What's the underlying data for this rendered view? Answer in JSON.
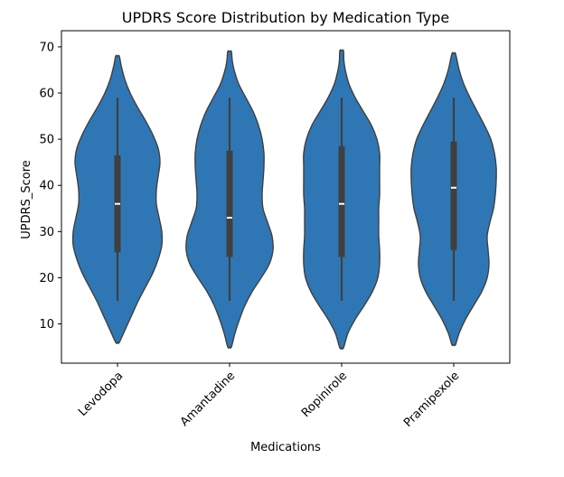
{
  "chart_data": {
    "type": "violin",
    "title": "UPDRS Score Distribution by Medication Type",
    "xlabel": "Medications",
    "ylabel": "UPDRS_Score",
    "categories": [
      "Levodopa",
      "Amantadine",
      "Ropinirole",
      "Pramipexole"
    ],
    "ylim": [
      1.5,
      73.5
    ],
    "yticks": [
      10,
      20,
      30,
      40,
      50,
      60,
      70
    ],
    "xtick_rotation_deg": 45,
    "grid": false,
    "legend": "none",
    "color": "#2f77b4",
    "violins": [
      {
        "category": "Levodopa",
        "kde_min": 6.0,
        "kde_max": 68.0,
        "whisker_low": 15,
        "q1": 25.5,
        "median": 36.0,
        "q3": 46.5,
        "whisker_high": 59,
        "density": [
          {
            "y": 6.0,
            "w": 2
          },
          {
            "y": 9,
            "w": 9
          },
          {
            "y": 12,
            "w": 16
          },
          {
            "y": 15,
            "w": 23
          },
          {
            "y": 18,
            "w": 31
          },
          {
            "y": 21,
            "w": 39
          },
          {
            "y": 24,
            "w": 45
          },
          {
            "y": 27,
            "w": 49
          },
          {
            "y": 30,
            "w": 49
          },
          {
            "y": 33,
            "w": 46
          },
          {
            "y": 36,
            "w": 43
          },
          {
            "y": 39,
            "w": 43
          },
          {
            "y": 42,
            "w": 45
          },
          {
            "y": 45,
            "w": 47
          },
          {
            "y": 48,
            "w": 45
          },
          {
            "y": 51,
            "w": 39
          },
          {
            "y": 54,
            "w": 31
          },
          {
            "y": 57,
            "w": 22
          },
          {
            "y": 60,
            "w": 14
          },
          {
            "y": 63,
            "w": 8
          },
          {
            "y": 66,
            "w": 4
          },
          {
            "y": 68.0,
            "w": 2
          }
        ]
      },
      {
        "category": "Amantadine",
        "kde_min": 5.0,
        "kde_max": 69.0,
        "whisker_low": 15,
        "q1": 24.5,
        "median": 33.0,
        "q3": 47.5,
        "whisker_high": 59,
        "density": [
          {
            "y": 5.0,
            "w": 2
          },
          {
            "y": 8,
            "w": 6
          },
          {
            "y": 11,
            "w": 11
          },
          {
            "y": 14,
            "w": 17
          },
          {
            "y": 17,
            "w": 25
          },
          {
            "y": 20,
            "w": 35
          },
          {
            "y": 23,
            "w": 44
          },
          {
            "y": 26,
            "w": 48
          },
          {
            "y": 29,
            "w": 47
          },
          {
            "y": 32,
            "w": 42
          },
          {
            "y": 35,
            "w": 37
          },
          {
            "y": 38,
            "w": 36
          },
          {
            "y": 41,
            "w": 37
          },
          {
            "y": 44,
            "w": 38
          },
          {
            "y": 47,
            "w": 38
          },
          {
            "y": 50,
            "w": 36
          },
          {
            "y": 53,
            "w": 32
          },
          {
            "y": 56,
            "w": 26
          },
          {
            "y": 59,
            "w": 18
          },
          {
            "y": 62,
            "w": 10
          },
          {
            "y": 65,
            "w": 5
          },
          {
            "y": 67,
            "w": 3
          },
          {
            "y": 69.0,
            "w": 2
          }
        ]
      },
      {
        "category": "Ropinirole",
        "kde_min": 4.8,
        "kde_max": 69.2,
        "whisker_low": 15,
        "q1": 24.5,
        "median": 36.0,
        "q3": 48.5,
        "whisker_high": 59,
        "density": [
          {
            "y": 4.8,
            "w": 2
          },
          {
            "y": 8,
            "w": 7
          },
          {
            "y": 11,
            "w": 15
          },
          {
            "y": 14,
            "w": 25
          },
          {
            "y": 17,
            "w": 34
          },
          {
            "y": 20,
            "w": 40
          },
          {
            "y": 23,
            "w": 42
          },
          {
            "y": 26,
            "w": 42
          },
          {
            "y": 29,
            "w": 41
          },
          {
            "y": 32,
            "w": 41
          },
          {
            "y": 35,
            "w": 41
          },
          {
            "y": 38,
            "w": 42
          },
          {
            "y": 41,
            "w": 42
          },
          {
            "y": 44,
            "w": 42
          },
          {
            "y": 47,
            "w": 42
          },
          {
            "y": 50,
            "w": 39
          },
          {
            "y": 53,
            "w": 33
          },
          {
            "y": 56,
            "w": 24
          },
          {
            "y": 59,
            "w": 15
          },
          {
            "y": 62,
            "w": 8
          },
          {
            "y": 65,
            "w": 4
          },
          {
            "y": 67,
            "w": 2.5
          },
          {
            "y": 69.2,
            "w": 2
          }
        ]
      },
      {
        "category": "Pramipexole",
        "kde_min": 5.5,
        "kde_max": 68.5,
        "whisker_low": 15,
        "q1": 26.0,
        "median": 39.5,
        "q3": 49.5,
        "whisker_high": 59,
        "density": [
          {
            "y": 5.5,
            "w": 2
          },
          {
            "y": 8,
            "w": 6
          },
          {
            "y": 11,
            "w": 13
          },
          {
            "y": 14,
            "w": 22
          },
          {
            "y": 17,
            "w": 31
          },
          {
            "y": 20,
            "w": 37
          },
          {
            "y": 23,
            "w": 39
          },
          {
            "y": 26,
            "w": 38
          },
          {
            "y": 29,
            "w": 37
          },
          {
            "y": 32,
            "w": 40
          },
          {
            "y": 35,
            "w": 44
          },
          {
            "y": 38,
            "w": 46
          },
          {
            "y": 41,
            "w": 47
          },
          {
            "y": 44,
            "w": 47
          },
          {
            "y": 47,
            "w": 45
          },
          {
            "y": 50,
            "w": 41
          },
          {
            "y": 53,
            "w": 34
          },
          {
            "y": 56,
            "w": 26
          },
          {
            "y": 59,
            "w": 18
          },
          {
            "y": 62,
            "w": 11
          },
          {
            "y": 65,
            "w": 6
          },
          {
            "y": 68.5,
            "w": 2
          }
        ]
      }
    ]
  }
}
